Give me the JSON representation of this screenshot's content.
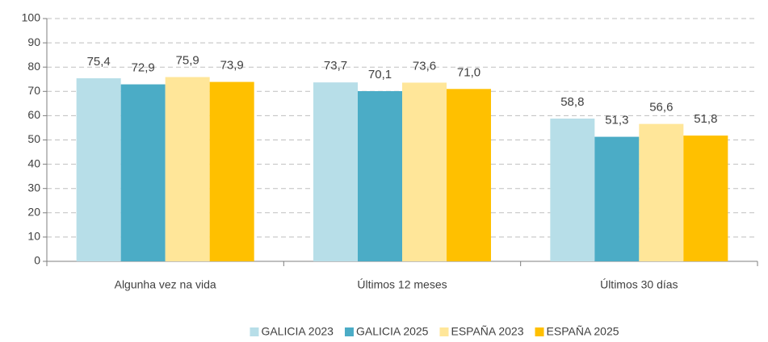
{
  "chart_data": {
    "type": "bar",
    "categories": [
      "Algunha vez na vida",
      "Últimos 12 meses",
      "Últimos 30 días"
    ],
    "series": [
      {
        "name": "GALICIA 2023",
        "color": "#b7dee8",
        "values": [
          75.4,
          73.7,
          58.8
        ],
        "value_labels": [
          "75,4",
          "73,7",
          "58,8"
        ]
      },
      {
        "name": "GALICIA 2025",
        "color": "#4bacc6",
        "values": [
          72.9,
          70.1,
          51.3
        ],
        "value_labels": [
          "72,9",
          "70,1",
          "51,3"
        ]
      },
      {
        "name": "ESPAÑA 2023",
        "color": "#ffe699",
        "values": [
          75.9,
          73.6,
          56.6
        ],
        "value_labels": [
          "75,9",
          "73,6",
          "56,6"
        ]
      },
      {
        "name": "ESPAÑA 2025",
        "color": "#ffc000",
        "values": [
          73.9,
          71.0,
          51.8
        ],
        "value_labels": [
          "73,9",
          "71,0",
          "51,8"
        ]
      }
    ],
    "ylim": [
      0,
      100
    ],
    "yticks": [
      0,
      10,
      20,
      30,
      40,
      50,
      60,
      70,
      80,
      90,
      100
    ],
    "grid": true,
    "legend": "bottom"
  }
}
